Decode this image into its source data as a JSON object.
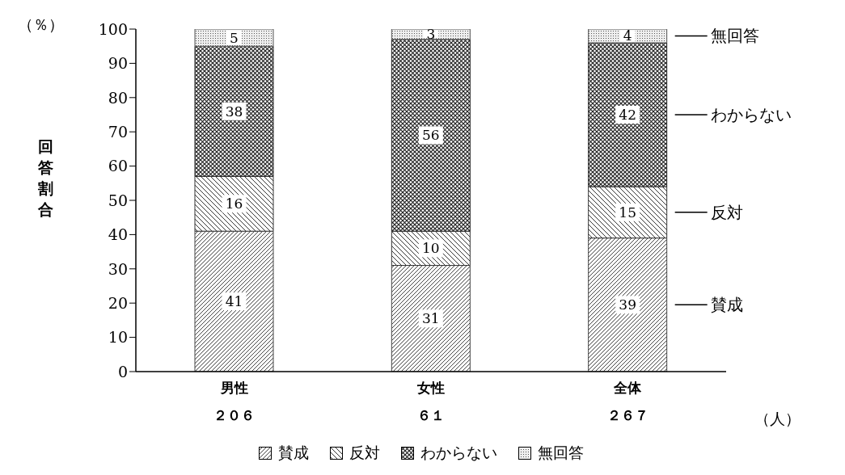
{
  "chart_data": {
    "type": "bar",
    "stacked": true,
    "ylabel": "回答割合",
    "categories": [
      "男性",
      "女性",
      "全体"
    ],
    "series": [
      {
        "name": "賛成",
        "color": "#444444",
        "values": [
          41,
          31,
          39
        ]
      },
      {
        "name": "反対",
        "color": "#333333",
        "values": [
          16,
          10,
          15
        ]
      },
      {
        "name": "わからない",
        "color": "#222222",
        "values": [
          38,
          56,
          42
        ]
      },
      {
        "name": "無回答",
        "color": "#555555",
        "values": [
          5,
          3,
          4
        ]
      }
    ],
    "ylim": [
      0,
      100
    ],
    "yticks": [
      0,
      10,
      20,
      30,
      40,
      50,
      60,
      70,
      80,
      90,
      100
    ],
    "data_labels": true,
    "legend": "bottom",
    "grid": false,
    "annotations": [
      "（％）",
      "（人）",
      "２０６",
      "６１",
      "２６７"
    ]
  }
}
